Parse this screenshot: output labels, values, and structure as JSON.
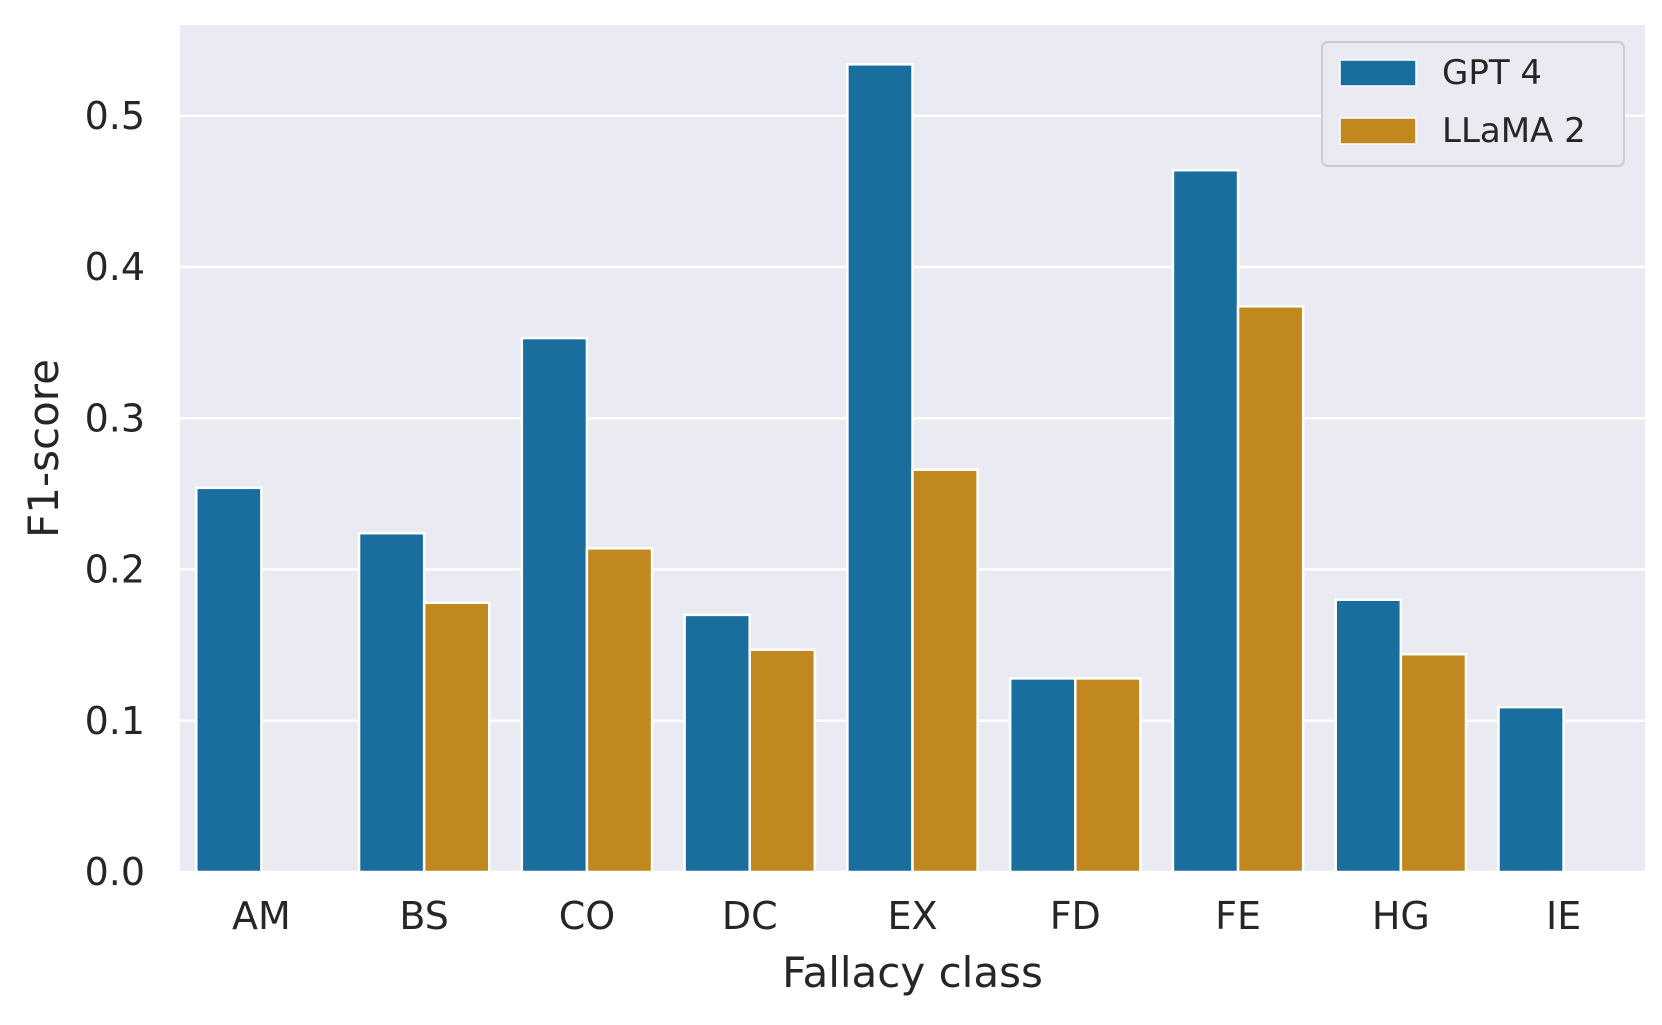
{
  "chart_data": {
    "type": "bar",
    "title": "",
    "xlabel": "Fallacy class",
    "ylabel": "F1-score",
    "categories": [
      "AM",
      "BS",
      "CO",
      "DC",
      "EX",
      "FD",
      "FE",
      "HG",
      "IE"
    ],
    "series": [
      {
        "name": "GPT 4",
        "color": "#1a6e9e",
        "values": [
          0.254,
          0.224,
          0.353,
          0.17,
          0.534,
          0.128,
          0.464,
          0.18,
          0.109
        ]
      },
      {
        "name": "LLaMA 2",
        "color": "#c18820",
        "values": [
          0.0,
          0.178,
          0.214,
          0.147,
          0.266,
          0.128,
          0.374,
          0.144,
          0.0
        ]
      }
    ],
    "ylim": [
      0,
      0.56
    ],
    "yticks": [
      "0.0",
      "0.1",
      "0.2",
      "0.3",
      "0.4",
      "0.5"
    ],
    "ytick_values": [
      0.0,
      0.1,
      0.2,
      0.3,
      0.4,
      0.5
    ],
    "grid": true,
    "legend_position": "top-right",
    "background_color": "#eaeaf2"
  }
}
